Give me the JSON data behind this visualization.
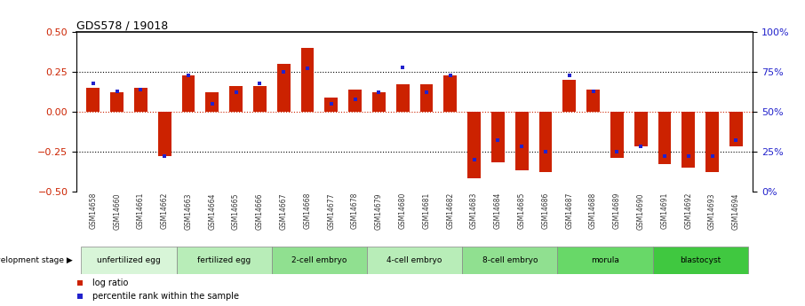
{
  "title": "GDS578 / 19018",
  "samples": [
    "GSM14658",
    "GSM14660",
    "GSM14661",
    "GSM14662",
    "GSM14663",
    "GSM14664",
    "GSM14665",
    "GSM14666",
    "GSM14667",
    "GSM14668",
    "GSM14677",
    "GSM14678",
    "GSM14679",
    "GSM14680",
    "GSM14681",
    "GSM14682",
    "GSM14683",
    "GSM14684",
    "GSM14685",
    "GSM14686",
    "GSM14687",
    "GSM14688",
    "GSM14689",
    "GSM14690",
    "GSM14691",
    "GSM14692",
    "GSM14693",
    "GSM14694"
  ],
  "log_ratio": [
    0.15,
    0.12,
    0.15,
    -0.28,
    0.23,
    0.12,
    0.16,
    0.16,
    0.3,
    0.4,
    0.09,
    0.14,
    0.12,
    0.17,
    0.17,
    0.23,
    -0.42,
    -0.32,
    -0.37,
    -0.38,
    0.2,
    0.14,
    -0.29,
    -0.22,
    -0.33,
    -0.35,
    -0.38,
    -0.22
  ],
  "percentile": [
    0.68,
    0.63,
    0.64,
    0.22,
    0.73,
    0.55,
    0.62,
    0.68,
    0.75,
    0.77,
    0.55,
    0.58,
    0.62,
    0.78,
    0.62,
    0.73,
    0.2,
    0.32,
    0.28,
    0.25,
    0.73,
    0.63,
    0.25,
    0.28,
    0.22,
    0.22,
    0.22,
    0.32
  ],
  "stages": [
    {
      "label": "unfertilized egg",
      "start": 0,
      "end": 4,
      "color": "#d8f5d8"
    },
    {
      "label": "fertilized egg",
      "start": 4,
      "end": 8,
      "color": "#b8edb8"
    },
    {
      "label": "2-cell embryo",
      "start": 8,
      "end": 12,
      "color": "#90e090"
    },
    {
      "label": "4-cell embryo",
      "start": 12,
      "end": 16,
      "color": "#b8edb8"
    },
    {
      "label": "8-cell embryo",
      "start": 16,
      "end": 20,
      "color": "#90e090"
    },
    {
      "label": "morula",
      "start": 20,
      "end": 24,
      "color": "#68d868"
    },
    {
      "label": "blastocyst",
      "start": 24,
      "end": 28,
      "color": "#40c840"
    }
  ],
  "bar_color": "#cc2200",
  "blue_color": "#2222cc",
  "ylim": [
    -0.5,
    0.5
  ],
  "y2lim": [
    0,
    100
  ],
  "yticks": [
    -0.5,
    -0.25,
    0.0,
    0.25,
    0.5
  ],
  "y2ticks": [
    0,
    25,
    50,
    75,
    100
  ],
  "hlines": [
    -0.25,
    0.0,
    0.25
  ],
  "title_fontsize": 9,
  "bar_width": 0.55
}
